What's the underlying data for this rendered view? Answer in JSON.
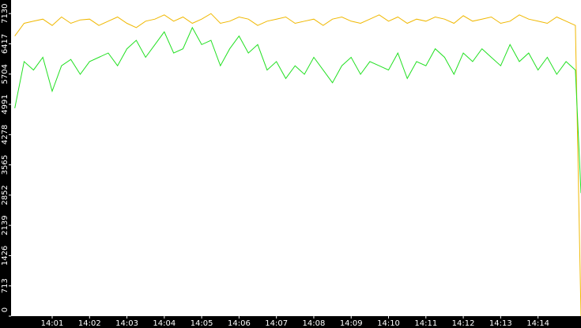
{
  "chart_data": {
    "type": "line",
    "x": [
      0,
      0.25,
      0.5,
      0.75,
      1,
      1.25,
      1.5,
      1.75,
      2,
      2.25,
      2.5,
      2.75,
      3,
      3.25,
      3.5,
      3.75,
      4,
      4.25,
      4.5,
      4.75,
      5,
      5.25,
      5.5,
      5.75,
      6,
      6.25,
      6.5,
      6.75,
      7,
      7.25,
      7.5,
      7.75,
      8,
      8.25,
      8.5,
      8.75,
      9,
      9.25,
      9.5,
      9.75,
      10,
      10.25,
      10.5,
      10.75,
      11,
      11.25,
      11.5,
      11.75,
      12,
      12.25,
      12.5,
      12.75,
      13,
      13.25,
      13.5,
      13.75,
      14,
      14.25,
      14.5,
      14.75,
      15,
      15.15
    ],
    "series": [
      {
        "color": "#f0b800",
        "values": [
          6600,
          6900,
          6950,
          7000,
          6850,
          7050,
          6900,
          6980,
          7000,
          6850,
          6950,
          7050,
          6900,
          6800,
          6950,
          7000,
          7100,
          6950,
          7050,
          6900,
          7000,
          7130,
          6900,
          6950,
          7050,
          7000,
          6850,
          6950,
          7000,
          7050,
          6900,
          6950,
          7000,
          6850,
          7000,
          7050,
          6950,
          6900,
          7000,
          7100,
          6950,
          7050,
          6900,
          7000,
          6950,
          7050,
          7000,
          6900,
          7080,
          6950,
          7000,
          7050,
          6900,
          6950,
          7100,
          7000,
          6950,
          6900,
          7050,
          6950,
          6850,
          0
        ]
      },
      {
        "color": "#22e022",
        "values": [
          4900,
          6000,
          5800,
          6100,
          5300,
          5900,
          6050,
          5700,
          6000,
          6100,
          6200,
          5900,
          6300,
          6500,
          6100,
          6400,
          6700,
          6200,
          6300,
          6800,
          6400,
          6500,
          5900,
          6300,
          6600,
          6200,
          6400,
          5800,
          6000,
          5600,
          5900,
          5700,
          6100,
          5800,
          5500,
          5900,
          6100,
          5700,
          6000,
          5900,
          5800,
          6200,
          5600,
          6000,
          5900,
          6300,
          6100,
          5700,
          6200,
          6000,
          6300,
          6100,
          5900,
          6400,
          6000,
          6200,
          5800,
          6100,
          5700,
          6000,
          5800,
          2900
        ]
      }
    ],
    "xlim": [
      -0.1,
      15.15
    ],
    "xticks": [
      {
        "value": 1,
        "label": "14:01"
      },
      {
        "value": 2,
        "label": "14:02"
      },
      {
        "value": 3,
        "label": "14:03"
      },
      {
        "value": 4,
        "label": "14:04"
      },
      {
        "value": 5,
        "label": "14:05"
      },
      {
        "value": 6,
        "label": "14:06"
      },
      {
        "value": 7,
        "label": "14:07"
      },
      {
        "value": 8,
        "label": "14:08"
      },
      {
        "value": 9,
        "label": "14:09"
      },
      {
        "value": 10,
        "label": "14:10"
      },
      {
        "value": 11,
        "label": "14:11"
      },
      {
        "value": 12,
        "label": "14:12"
      },
      {
        "value": 13,
        "label": "14:13"
      },
      {
        "value": 14,
        "label": "14:14"
      }
    ],
    "ylim": [
      0,
      7450
    ],
    "yticks": [
      0,
      713,
      1426,
      2139,
      2852,
      3565,
      4278,
      4991,
      5704,
      6417,
      7130
    ]
  }
}
